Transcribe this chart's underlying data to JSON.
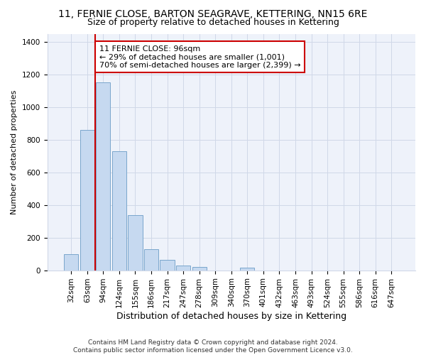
{
  "title_line1": "11, FERNIE CLOSE, BARTON SEAGRAVE, KETTERING, NN15 6RE",
  "title_line2": "Size of property relative to detached houses in Kettering",
  "xlabel": "Distribution of detached houses by size in Kettering",
  "ylabel": "Number of detached properties",
  "categories": [
    "32sqm",
    "63sqm",
    "94sqm",
    "124sqm",
    "155sqm",
    "186sqm",
    "217sqm",
    "247sqm",
    "278sqm",
    "309sqm",
    "340sqm",
    "370sqm",
    "401sqm",
    "432sqm",
    "463sqm",
    "493sqm",
    "524sqm",
    "555sqm",
    "586sqm",
    "616sqm",
    "647sqm"
  ],
  "values": [
    100,
    860,
    1150,
    730,
    340,
    130,
    62,
    30,
    20,
    0,
    0,
    15,
    0,
    0,
    0,
    0,
    0,
    0,
    0,
    0,
    0
  ],
  "bar_color": "#c6d9f0",
  "bar_edge_color": "#7aa6cc",
  "vline_x": 1.5,
  "vline_color": "#cc0000",
  "annotation_text": "11 FERNIE CLOSE: 96sqm\n← 29% of detached houses are smaller (1,001)\n70% of semi-detached houses are larger (2,399) →",
  "annotation_box_color": "white",
  "annotation_box_edge": "#cc0000",
  "ylim": [
    0,
    1450
  ],
  "yticks": [
    0,
    200,
    400,
    600,
    800,
    1000,
    1200,
    1400
  ],
  "grid_color": "#d0d8e8",
  "bg_color": "#eef2fa",
  "footer": "Contains HM Land Registry data © Crown copyright and database right 2024.\nContains public sector information licensed under the Open Government Licence v3.0.",
  "title1_fontsize": 10,
  "title2_fontsize": 9,
  "xlabel_fontsize": 9,
  "ylabel_fontsize": 8,
  "annotation_fontsize": 8,
  "footer_fontsize": 6.5,
  "tick_fontsize": 7.5
}
